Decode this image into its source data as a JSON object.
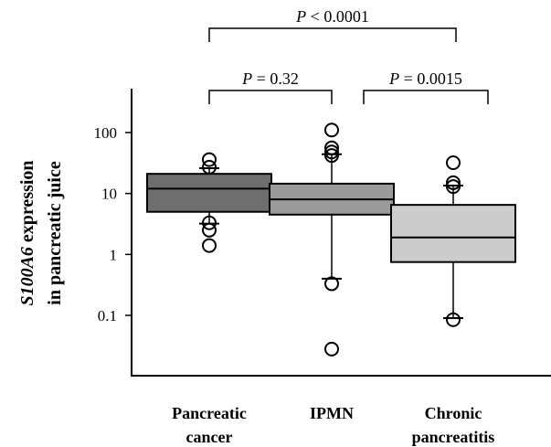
{
  "chart_data": {
    "type": "boxplot",
    "y_axis_label_italic": "S100A6",
    "y_axis_label_line1_rest": " expression",
    "y_axis_label_line2": "in pancreatic juice",
    "y_scale": "log",
    "ylim": [
      0.02,
      300
    ],
    "y_ticks": [
      {
        "value": 0.1,
        "label": "0.1"
      },
      {
        "value": 1,
        "label": "1"
      },
      {
        "value": 10,
        "label": "10"
      },
      {
        "value": 100,
        "label": "100"
      }
    ],
    "groups": [
      {
        "label_lines": [
          "Pancreatic",
          "cancer"
        ],
        "color": "#6e6e6e",
        "whisker_low": 3.2,
        "q1": 5.0,
        "median": 12.0,
        "q3": 21.0,
        "whisker_high": 26.0,
        "outliers": [
          36,
          27,
          3.3,
          2.5,
          1.4
        ]
      },
      {
        "label_lines": [
          "IPMN"
        ],
        "color": "#9b9b9b",
        "whisker_low": 0.4,
        "q1": 4.5,
        "median": 8.0,
        "q3": 14.5,
        "whisker_high": 44.0,
        "outliers": [
          110,
          56,
          48,
          42,
          0.33,
          0.028
        ]
      },
      {
        "label_lines": [
          "Chronic",
          "pancreatitis"
        ],
        "color": "#cccccc",
        "whisker_low": 0.09,
        "q1": 0.75,
        "median": 1.9,
        "q3": 6.5,
        "whisker_high": 13.5,
        "outliers": [
          32,
          15,
          13,
          0.085
        ]
      }
    ],
    "comparisons": [
      {
        "from": 0,
        "to": 2,
        "label_p": "P",
        "label_rest": " < 0.0001",
        "level": 2
      },
      {
        "from": 0,
        "to": 1,
        "label_p": "P",
        "label_rest": " = 0.32",
        "level": 1
      },
      {
        "from": 1,
        "to": 2,
        "label_p": "P",
        "label_rest": " = 0.0015",
        "level": 1
      }
    ]
  }
}
